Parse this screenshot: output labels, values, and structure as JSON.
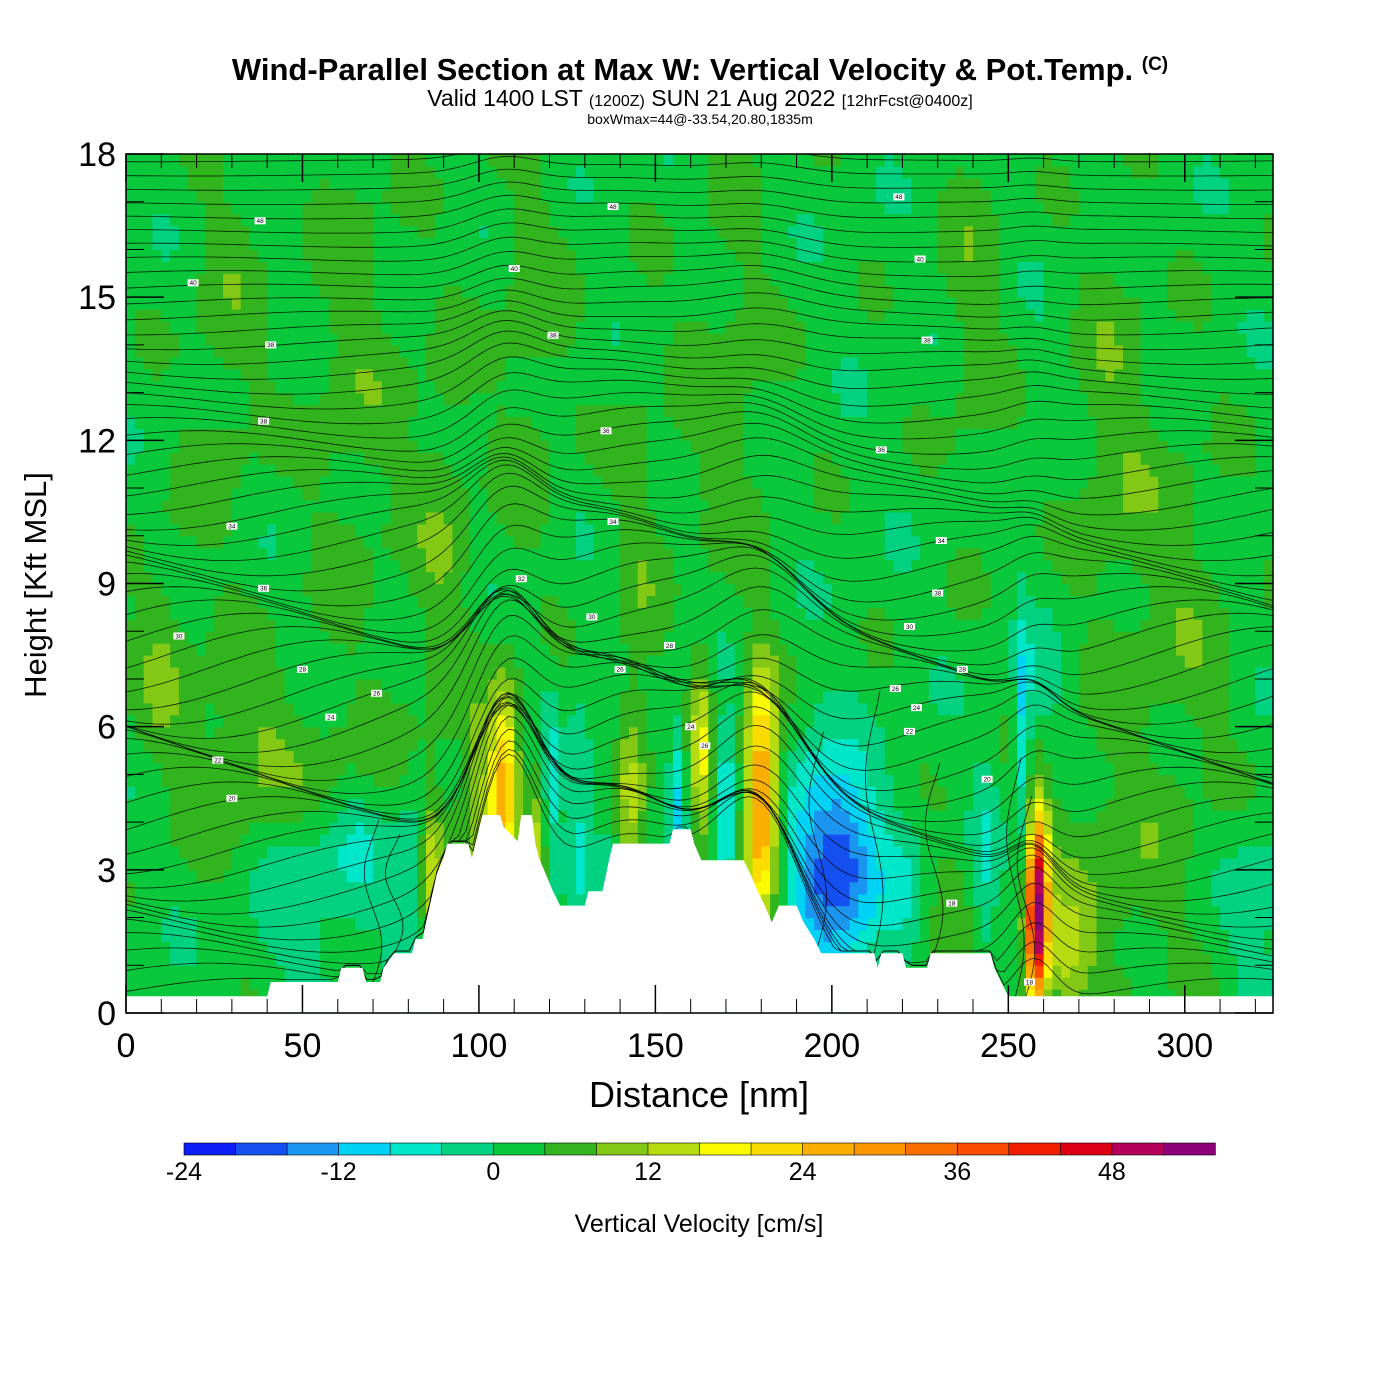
{
  "header": {
    "title": "Wind-Parallel Section at Max W: Vertical Velocity & Pot.Temp.",
    "copyright_mark": "(C)",
    "subtitle_valid": "Valid 1400 LST",
    "subtitle_utc": "(1200Z)",
    "subtitle_date": "SUN 21 Aug 2022",
    "subtitle_fcst": "[12hrFcst@0400z]",
    "box_note": "boxWmax=44@-33.54,20.80,1835m"
  },
  "chart_data": {
    "type": "heatmap",
    "xlabel": "Distance [nm]",
    "ylabel": "Height [Kft MSL]",
    "xlim": [
      0,
      325
    ],
    "ylim": [
      0,
      18
    ],
    "x_ticks": [
      0,
      50,
      100,
      150,
      200,
      250,
      300
    ],
    "y_ticks": [
      0,
      3,
      6,
      9,
      12,
      15,
      18
    ],
    "colorbar": {
      "label": "Vertical Velocity [cm/s]",
      "ticks": [
        -24,
        -12,
        0,
        12,
        24,
        36,
        48
      ],
      "levels": [
        -24,
        -20,
        -16,
        -12,
        -8,
        -4,
        0,
        4,
        8,
        12,
        16,
        20,
        24,
        28,
        32,
        36,
        40,
        44,
        48,
        52,
        56
      ],
      "colors": [
        "#0a1ef5",
        "#1450f0",
        "#1a96f0",
        "#00d2f5",
        "#00e6c8",
        "#00d281",
        "#0ac83c",
        "#32b41e",
        "#82c814",
        "#b4dc10",
        "#fafa00",
        "#fadc00",
        "#faaf00",
        "#fa9600",
        "#fa6e00",
        "#fa4b00",
        "#f01e00",
        "#dc0014",
        "#b4005a",
        "#8c0078"
      ]
    },
    "background_w": 2,
    "terrain_kft": [
      [
        0,
        0.35
      ],
      [
        40,
        0.35
      ],
      [
        41,
        0.65
      ],
      [
        60,
        0.65
      ],
      [
        61,
        0.95
      ],
      [
        67,
        0.95
      ],
      [
        68,
        0.65
      ],
      [
        72,
        0.65
      ],
      [
        73,
        0.95
      ],
      [
        76,
        1.25
      ],
      [
        81,
        1.25
      ],
      [
        82,
        1.55
      ],
      [
        84,
        1.55
      ],
      [
        85,
        1.9
      ],
      [
        87,
        2.55
      ],
      [
        88,
        2.9
      ],
      [
        90,
        3.25
      ],
      [
        91,
        3.55
      ],
      [
        97,
        3.55
      ],
      [
        98,
        3.25
      ],
      [
        99,
        3.55
      ],
      [
        101,
        4.15
      ],
      [
        106,
        4.15
      ],
      [
        107,
        3.9
      ],
      [
        111,
        3.6
      ],
      [
        112,
        4.15
      ],
      [
        115,
        4.15
      ],
      [
        116,
        3.55
      ],
      [
        117,
        3.25
      ],
      [
        119,
        2.9
      ],
      [
        121,
        2.55
      ],
      [
        123,
        2.25
      ],
      [
        130,
        2.25
      ],
      [
        131,
        2.55
      ],
      [
        135,
        2.55
      ],
      [
        136,
        2.9
      ],
      [
        137,
        3.25
      ],
      [
        138,
        3.55
      ],
      [
        154,
        3.55
      ],
      [
        155,
        3.85
      ],
      [
        160,
        3.85
      ],
      [
        161,
        3.55
      ],
      [
        163,
        3.2
      ],
      [
        175,
        3.2
      ],
      [
        177,
        2.9
      ],
      [
        179,
        2.55
      ],
      [
        181,
        2.25
      ],
      [
        183,
        1.9
      ],
      [
        185,
        2.25
      ],
      [
        190,
        2.25
      ],
      [
        192,
        1.9
      ],
      [
        195,
        1.55
      ],
      [
        197,
        1.25
      ],
      [
        212,
        1.25
      ],
      [
        213,
        0.95
      ],
      [
        214,
        1.25
      ],
      [
        220,
        1.25
      ],
      [
        221,
        0.95
      ],
      [
        227,
        0.95
      ],
      [
        228,
        1.25
      ],
      [
        245,
        1.25
      ],
      [
        246,
        0.95
      ],
      [
        248,
        0.65
      ],
      [
        250,
        0.35
      ],
      [
        325,
        0.35
      ]
    ],
    "features": [
      {
        "x": 107,
        "z": 5.2,
        "sx": 3.0,
        "sz": 1.3,
        "w": 18
      },
      {
        "x": 105,
        "z": 3.2,
        "sx": 3.5,
        "sz": 1.5,
        "w": 12
      },
      {
        "x": 120,
        "z": 4.3,
        "sx": 1.5,
        "sz": 1.5,
        "w": -10
      },
      {
        "x": 117,
        "z": 3.2,
        "sx": 2.0,
        "sz": 1.5,
        "w": 10
      },
      {
        "x": 99,
        "z": 4.3,
        "sx": 2.0,
        "sz": 1.3,
        "w": 8
      },
      {
        "x": 93,
        "z": 3.6,
        "sx": 1.5,
        "sz": 1.0,
        "w": 6
      },
      {
        "x": 87,
        "z": 3.0,
        "sx": 2.0,
        "sz": 1.2,
        "w": 12
      },
      {
        "x": 80,
        "z": 3.2,
        "sx": 3.0,
        "sz": 1.2,
        "w": -6
      },
      {
        "x": 66,
        "z": 3.5,
        "sx": 6.0,
        "sz": 1.5,
        "w": -5
      },
      {
        "x": 50,
        "z": 3.0,
        "sx": 10.0,
        "sz": 2.0,
        "w": -5
      },
      {
        "x": 60,
        "z": 5.0,
        "sx": 15.0,
        "sz": 1.0,
        "w": 5
      },
      {
        "x": 35,
        "z": 5.5,
        "sx": 12.0,
        "sz": 1.5,
        "w": 6
      },
      {
        "x": 143,
        "z": 4.6,
        "sx": 3.0,
        "sz": 1.5,
        "w": 9
      },
      {
        "x": 129,
        "z": 4.2,
        "sx": 3.0,
        "sz": 1.6,
        "w": -6
      },
      {
        "x": 137,
        "z": 4.3,
        "sx": 2.0,
        "sz": 1.6,
        "w": -4
      },
      {
        "x": 156,
        "z": 4.6,
        "sx": 1.5,
        "sz": 1.2,
        "w": -10
      },
      {
        "x": 163,
        "z": 5.3,
        "sx": 2.0,
        "sz": 1.5,
        "w": 14
      },
      {
        "x": 170,
        "z": 4.2,
        "sx": 2.0,
        "sz": 1.4,
        "w": -12
      },
      {
        "x": 180,
        "z": 4.6,
        "sx": 3.2,
        "sz": 1.7,
        "w": 30
      },
      {
        "x": 196,
        "z": 3.3,
        "sx": 6.0,
        "sz": 1.6,
        "w": -16
      },
      {
        "x": 205,
        "z": 3.2,
        "sx": 5.0,
        "sz": 1.2,
        "w": -14
      },
      {
        "x": 215,
        "z": 2.5,
        "sx": 8.0,
        "sz": 1.5,
        "w": -6
      },
      {
        "x": 232,
        "z": 2.0,
        "sx": 5.0,
        "sz": 1.0,
        "w": 5
      },
      {
        "x": 243,
        "z": 2.5,
        "sx": 3.0,
        "sz": 2.0,
        "w": -6
      },
      {
        "x": 258,
        "z": 1.8,
        "sx": 2.0,
        "sz": 1.3,
        "w": 44
      },
      {
        "x": 259,
        "z": 3.3,
        "sx": 2.0,
        "sz": 1.0,
        "w": 14
      },
      {
        "x": 265,
        "z": 1.2,
        "sx": 5.0,
        "sz": 0.8,
        "w": 9
      },
      {
        "x": 254,
        "z": 6.0,
        "sx": 1.5,
        "sz": 1.6,
        "w": -12
      },
      {
        "x": 260,
        "z": 6.8,
        "sx": 4.0,
        "sz": 0.8,
        "w": -4
      },
      {
        "x": 275,
        "z": 2.5,
        "sx": 15.0,
        "sz": 2.0,
        "w": 5
      },
      {
        "x": 320,
        "z": 2.0,
        "sx": 5.0,
        "sz": 1.5,
        "w": -5
      },
      {
        "x": 28,
        "z": 14.0,
        "sx": 8.0,
        "sz": 3.0,
        "w": 4
      },
      {
        "x": 65,
        "z": 13.0,
        "sx": 10.0,
        "sz": 4.0,
        "w": 4
      },
      {
        "x": 115,
        "z": 14.0,
        "sx": 8.0,
        "sz": 3.0,
        "w": 4
      },
      {
        "x": 170,
        "z": 13.0,
        "sx": 10.0,
        "sz": 3.0,
        "w": 4
      },
      {
        "x": 240,
        "z": 15.0,
        "sx": 6.0,
        "sz": 3.0,
        "w": 4
      },
      {
        "x": 90,
        "z": 10.0,
        "sx": 6.0,
        "sz": 3.0,
        "w": 5
      },
      {
        "x": 145,
        "z": 9.5,
        "sx": 5.0,
        "sz": 3.0,
        "w": 4
      },
      {
        "x": 280,
        "z": 12.0,
        "sx": 8.0,
        "sz": 3.0,
        "w": 5
      },
      {
        "x": 300,
        "z": 8.0,
        "sx": 10.0,
        "sz": 3.0,
        "w": 4
      },
      {
        "x": 10,
        "z": 7.5,
        "sx": 6.0,
        "sz": 2.0,
        "w": 5
      }
    ],
    "theta_labels": [
      {
        "x": 38,
        "z": 16.6,
        "text": "48"
      },
      {
        "x": 138,
        "z": 16.9,
        "text": "48"
      },
      {
        "x": 219,
        "z": 17.1,
        "text": "48"
      },
      {
        "x": 19,
        "z": 15.3,
        "text": "40"
      },
      {
        "x": 110,
        "z": 15.6,
        "text": "40"
      },
      {
        "x": 225,
        "z": 15.8,
        "text": "40"
      },
      {
        "x": 41,
        "z": 14.0,
        "text": "38"
      },
      {
        "x": 121,
        "z": 14.2,
        "text": "38"
      },
      {
        "x": 227,
        "z": 14.1,
        "text": "38"
      },
      {
        "x": 39,
        "z": 12.4,
        "text": "38"
      },
      {
        "x": 136,
        "z": 12.2,
        "text": "36"
      },
      {
        "x": 214,
        "z": 11.8,
        "text": "36"
      },
      {
        "x": 30,
        "z": 10.2,
        "text": "34"
      },
      {
        "x": 138,
        "z": 10.3,
        "text": "34"
      },
      {
        "x": 231,
        "z": 9.9,
        "text": "34"
      },
      {
        "x": 39,
        "z": 8.9,
        "text": "36"
      },
      {
        "x": 112,
        "z": 9.1,
        "text": "32"
      },
      {
        "x": 230,
        "z": 8.8,
        "text": "38"
      },
      {
        "x": 15,
        "z": 7.9,
        "text": "30"
      },
      {
        "x": 132,
        "z": 8.3,
        "text": "30"
      },
      {
        "x": 222,
        "z": 8.1,
        "text": "30"
      },
      {
        "x": 50,
        "z": 7.2,
        "text": "28"
      },
      {
        "x": 154,
        "z": 7.7,
        "text": "28"
      },
      {
        "x": 140,
        "z": 7.2,
        "text": "26"
      },
      {
        "x": 237,
        "z": 7.2,
        "text": "28"
      },
      {
        "x": 71,
        "z": 6.7,
        "text": "26"
      },
      {
        "x": 218,
        "z": 6.8,
        "text": "26"
      },
      {
        "x": 58,
        "z": 6.2,
        "text": "24"
      },
      {
        "x": 224,
        "z": 6.4,
        "text": "24"
      },
      {
        "x": 160,
        "z": 6.0,
        "text": "24"
      },
      {
        "x": 164,
        "z": 5.6,
        "text": "26"
      },
      {
        "x": 26,
        "z": 5.3,
        "text": "22"
      },
      {
        "x": 222,
        "z": 5.9,
        "text": "22"
      },
      {
        "x": 30,
        "z": 4.5,
        "text": "20"
      },
      {
        "x": 244,
        "z": 4.9,
        "text": "20"
      },
      {
        "x": 234,
        "z": 2.3,
        "text": "18"
      },
      {
        "x": 256,
        "z": 0.65,
        "text": "18"
      }
    ]
  }
}
